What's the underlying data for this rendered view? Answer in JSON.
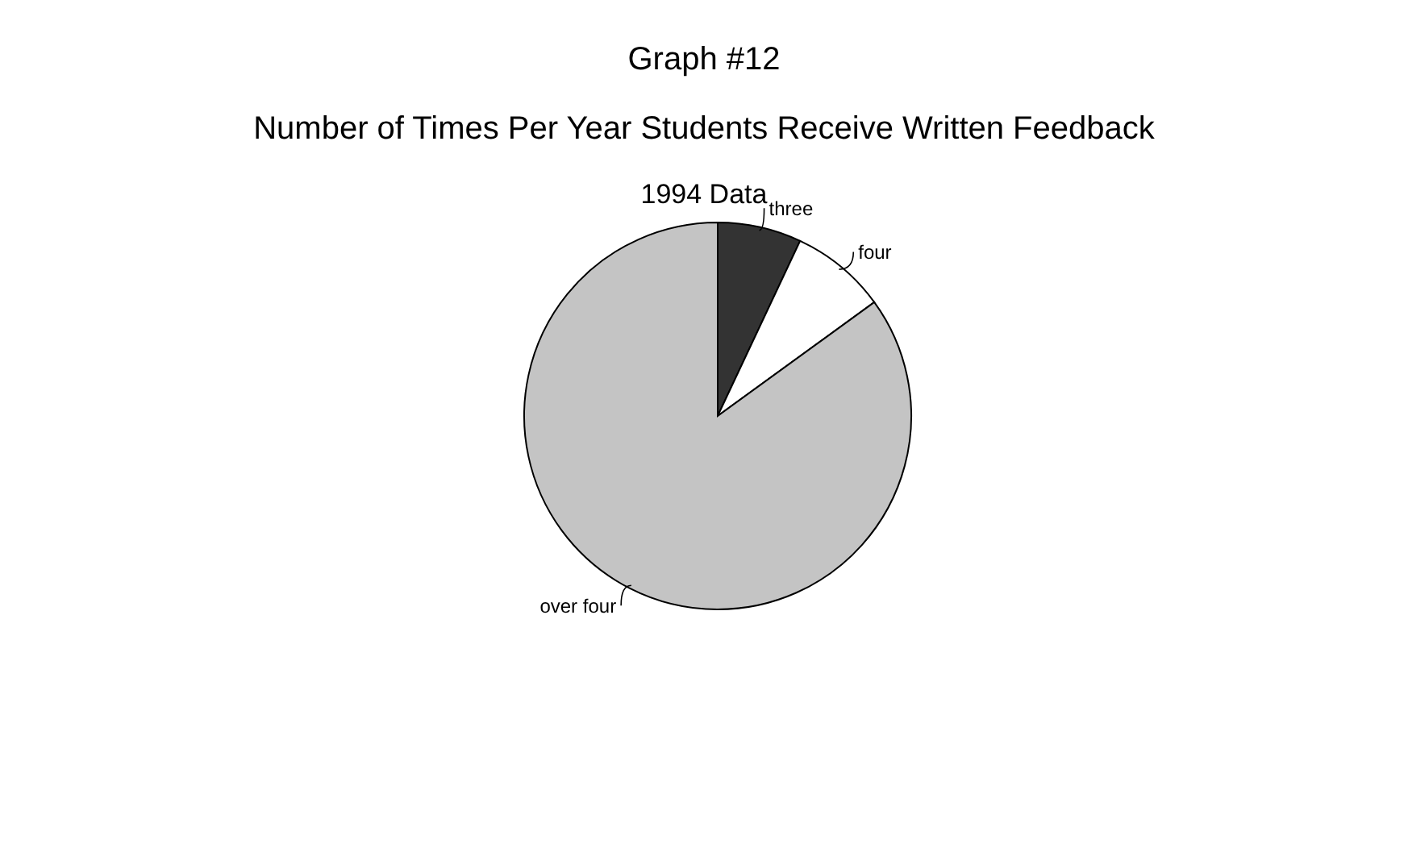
{
  "chart_data": {
    "type": "pie",
    "title": "Graph #12",
    "subtitle": "Number of Times Per Year Students Receive Written Feedback",
    "annotations": [
      "1994 Data"
    ],
    "categories": [
      "three",
      "four",
      "over four"
    ],
    "values": [
      7,
      8,
      85
    ],
    "colors": [
      "#333333",
      "#ffffff",
      "#c4c4c4"
    ]
  }
}
